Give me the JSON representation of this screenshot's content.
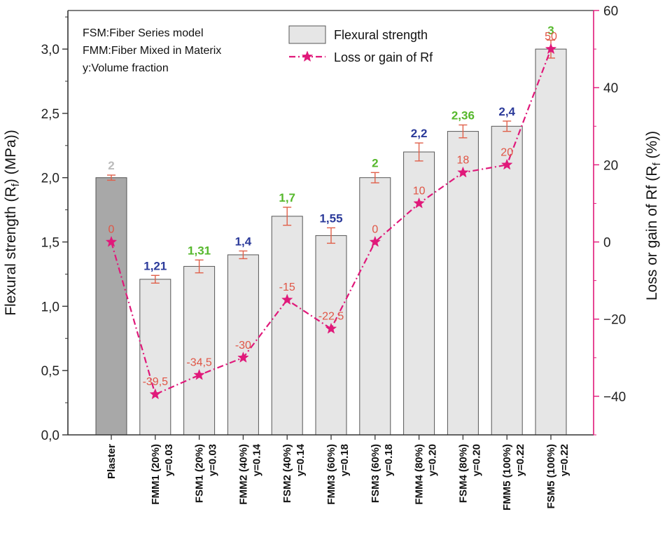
{
  "chart_data": {
    "type": "bar",
    "categories": [
      {
        "line1": "Plaster",
        "line2": ""
      },
      {
        "line1": "FMM1 (20%)",
        "line2": "y=0.03"
      },
      {
        "line1": "FSM1 (20%)",
        "line2": "y=0.03"
      },
      {
        "line1": "FMM2 (40%)",
        "line2": "y=0.14"
      },
      {
        "line1": "FSM2 (40%)",
        "line2": "y=0.14"
      },
      {
        "line1": "FMM3 (60%)",
        "line2": "y=0.18"
      },
      {
        "line1": "FSM3 (60%)",
        "line2": "y=0.18"
      },
      {
        "line1": "FMM4 (80%)",
        "line2": "y=0.20"
      },
      {
        "line1": "FSM4 (80%)",
        "line2": "y=0.20"
      },
      {
        "line1": "FMM5 (100%)",
        "line2": "y=0.22"
      },
      {
        "line1": "FSM5 (100%)",
        "line2": "y=0.22"
      }
    ],
    "series": [
      {
        "name": "Flexural strength",
        "axis": "left",
        "values": [
          2.0,
          1.21,
          1.31,
          1.4,
          1.7,
          1.55,
          2.0,
          2.2,
          2.36,
          2.4,
          3.0
        ],
        "errors": [
          0.02,
          0.03,
          0.05,
          0.03,
          0.07,
          0.06,
          0.04,
          0.07,
          0.05,
          0.04,
          0.07
        ],
        "value_labels": [
          "2",
          "1,21",
          "1,31",
          "1,4",
          "1,7",
          "1,55",
          "2",
          "2,2",
          "2,36",
          "2,4",
          "3"
        ],
        "label_colors": [
          "#bbbbbb",
          "#2b3a9a",
          "#56b82c",
          "#2b3a9a",
          "#56b82c",
          "#2b3a9a",
          "#56b82c",
          "#2b3a9a",
          "#56b82c",
          "#2b3a9a",
          "#56b82c"
        ]
      },
      {
        "name": "Loss or gain of  Rf",
        "axis": "right",
        "values": [
          0,
          -39.5,
          -34.5,
          -30,
          -15,
          -22.5,
          0,
          10,
          18,
          20,
          50
        ],
        "value_labels": [
          "0",
          "-39,5",
          "-34,5",
          "-30",
          "-15",
          "-22,5",
          "0",
          "10",
          "18",
          "20",
          "50"
        ]
      }
    ],
    "ylabel": "Flexural strength (R",
    "ylabel_sub": "f",
    "ylabel_end": ") (MPa))",
    "y2label": "Loss or gain of  Rf (R",
    "y2label_sub": "f",
    "y2label_end": " (%))",
    "ylim": [
      0,
      3.3
    ],
    "y2lim": [
      -50,
      60
    ],
    "yticks": [
      0,
      0.5,
      1.0,
      1.5,
      2.0,
      2.5,
      3.0
    ],
    "ytick_labels": [
      "0,0",
      "0,5",
      "1,0",
      "1,5",
      "2,0",
      "2,5",
      "3,0"
    ],
    "y2ticks": [
      -40,
      -20,
      0,
      20,
      40,
      60
    ],
    "y2tick_labels": [
      "−40",
      "−20",
      "0",
      "20",
      "40",
      "60"
    ],
    "notes": [
      "FSM:Fiber Series model",
      "FMM:Fiber Mixed in Materix",
      "y:Volume fraction"
    ],
    "legend": {
      "placement": "top-center",
      "entries": [
        "Flexural strength",
        "Loss or gain of  Rf"
      ]
    },
    "colors": {
      "bar_fill": "#e6e6e6",
      "bar_fill_first": "#a8a8a8",
      "bar_stroke": "#555555",
      "error_bar": "#e0604a",
      "line": "#e0197a",
      "marker": "#e0197a",
      "loss_label": "#e05545",
      "right_axis": "#e0197a"
    }
  }
}
